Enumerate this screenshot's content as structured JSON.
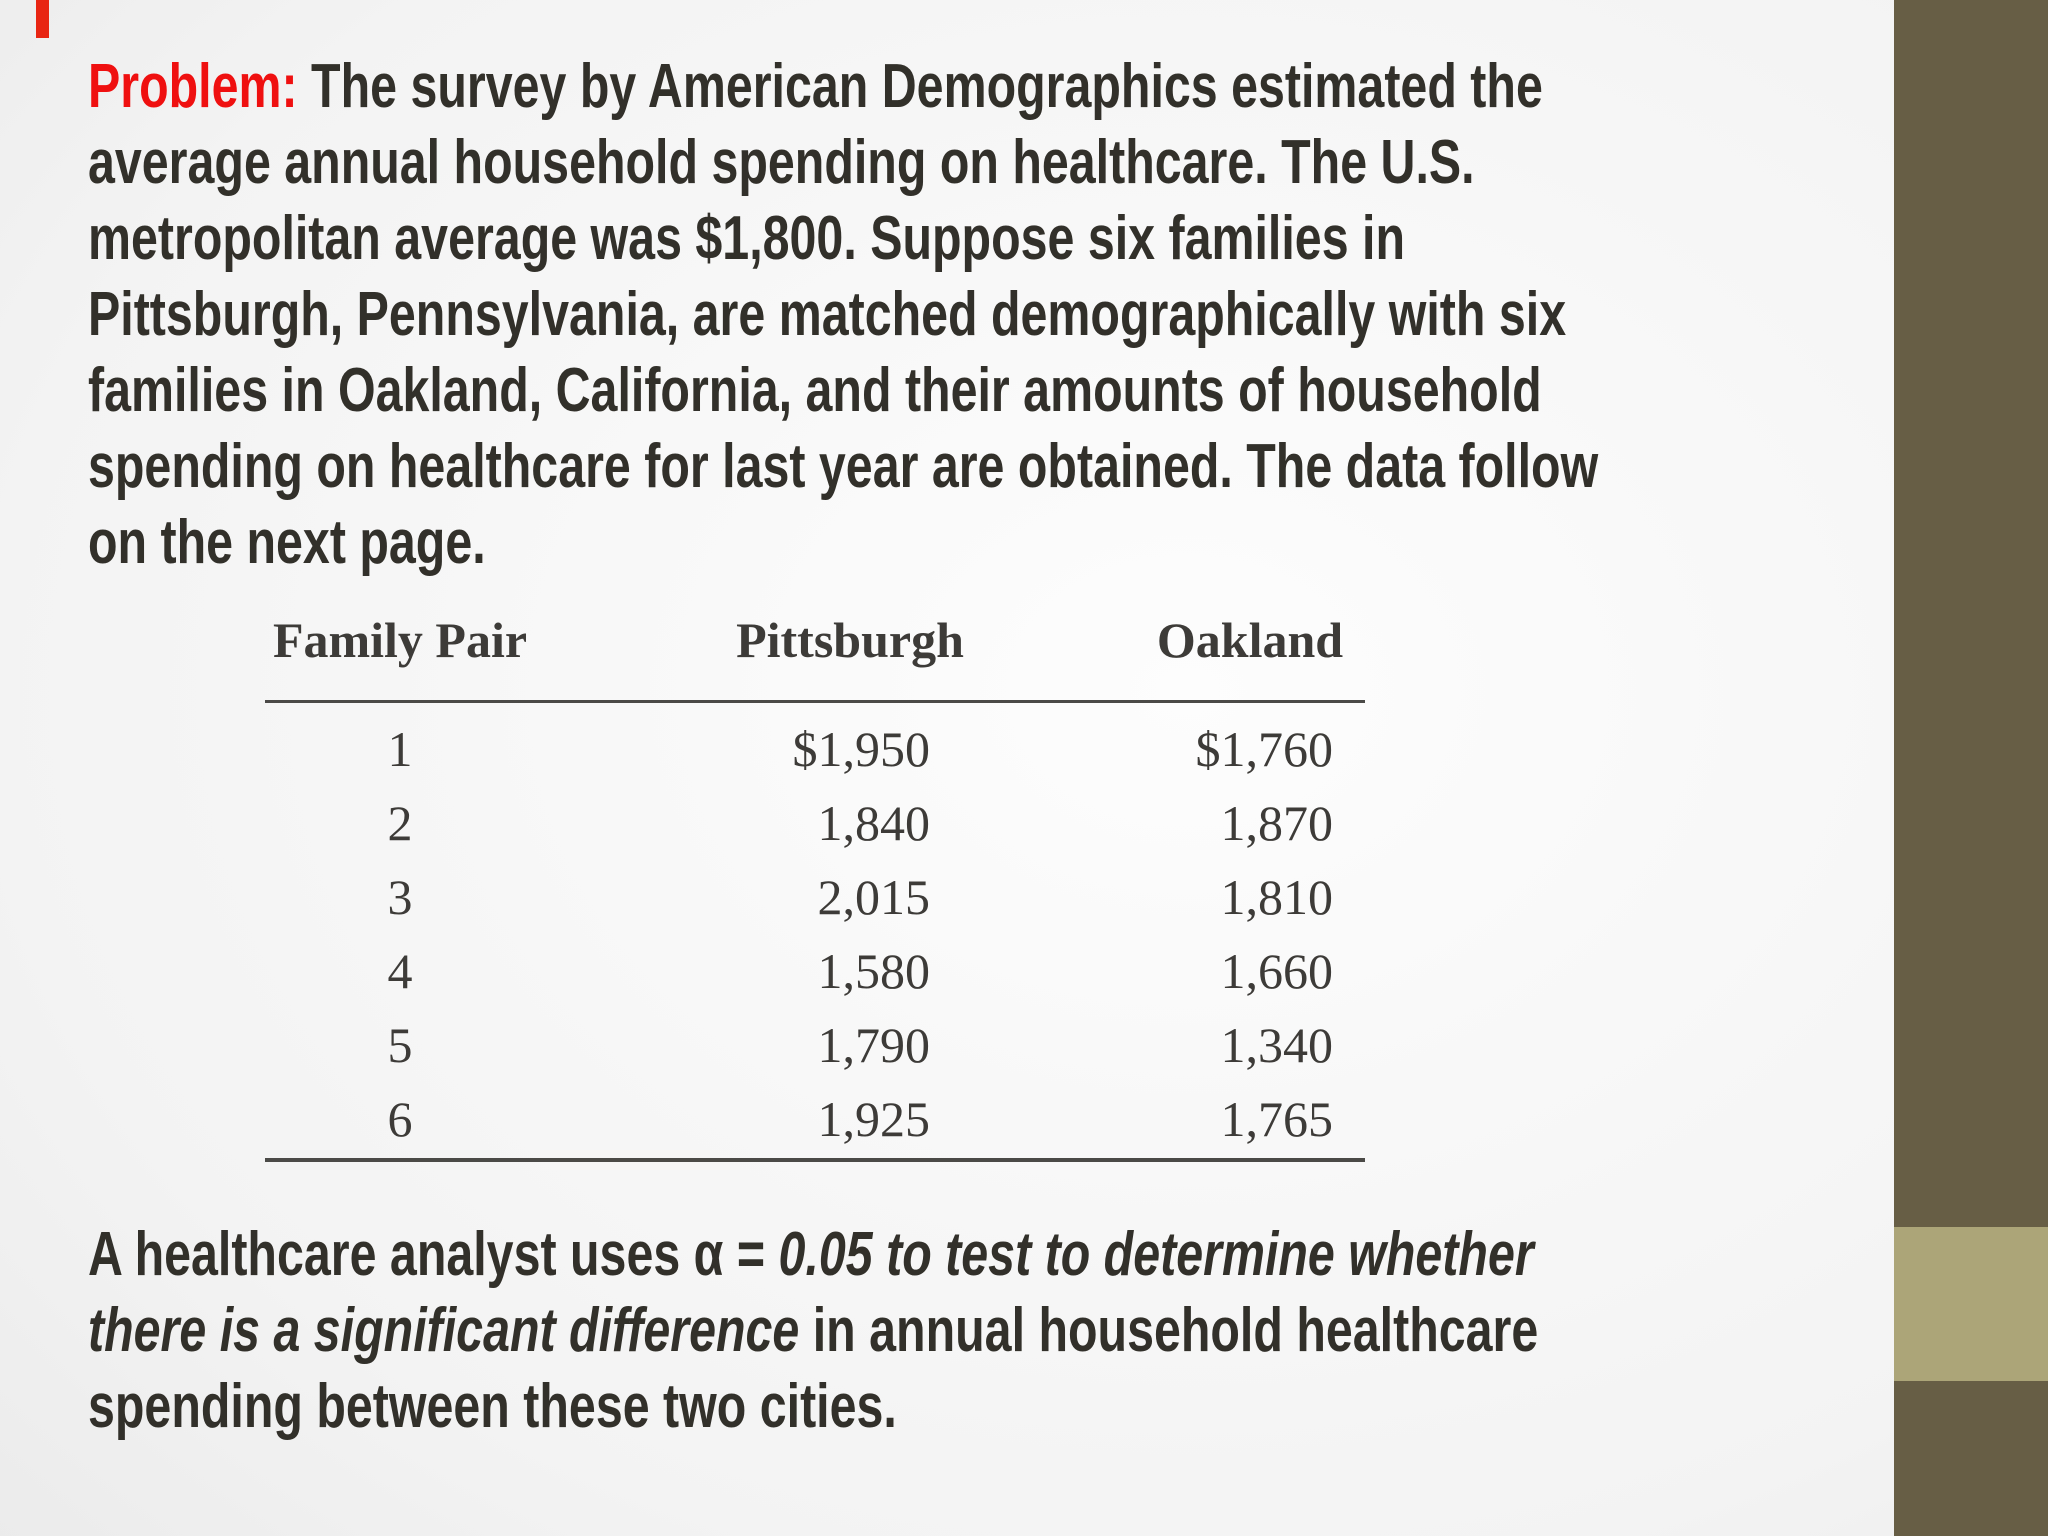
{
  "slide": {
    "colors": {
      "accent_red": "#ef1010",
      "red_mark": "#e82512",
      "text_dark": "#32302a",
      "table_text": "#3d3b38",
      "stripe_dark": "#675e45",
      "stripe_light": "#aca578",
      "background_light": "#fdfdfd",
      "background_edge": "#d9d9d9"
    },
    "problem_paragraph_lines": [
      [
        {
          "t": "Problem:",
          "s": "red"
        },
        {
          "t": "  The survey by American Demographics estimated the",
          "s": "b"
        }
      ],
      [
        {
          "t": "average annual household spending on healthcare. The U.S.",
          "s": "b"
        }
      ],
      [
        {
          "t": "metropolitan average was $1,800. Suppose six families in",
          "s": "b"
        }
      ],
      [
        {
          "t": "Pittsburgh, Pennsylvania, are matched demographically with six",
          "s": "b"
        }
      ],
      [
        {
          "t": "families in Oakland, California, and their amounts of household",
          "s": "b"
        }
      ],
      [
        {
          "t": "spending on healthcare for last year are obtained. The data follow",
          "s": "b"
        }
      ],
      [
        {
          "t": "on the next page.",
          "s": "b"
        }
      ]
    ],
    "table": {
      "columns": [
        "Family Pair",
        "Pittsburgh",
        "Oakland"
      ],
      "rows": [
        [
          "1",
          "$1,950",
          "$1,760"
        ],
        [
          "2",
          "1,840",
          "1,870"
        ],
        [
          "3",
          "2,015",
          "1,810"
        ],
        [
          "4",
          "1,580",
          "1,660"
        ],
        [
          "5",
          "1,790",
          "1,340"
        ],
        [
          "6",
          "1,925",
          "1,765"
        ]
      ]
    },
    "analysis_paragraph_lines": [
      [
        {
          "t": "A healthcare analyst uses α = ",
          "s": "b"
        },
        {
          "t": "0.05 to test to determine whether",
          "s": "bi"
        }
      ],
      [
        {
          "t": "there is a significant difference",
          "s": "bi"
        },
        {
          "t": " in annual household healthcare",
          "s": "b"
        }
      ],
      [
        {
          "t": "spending between these two cities.",
          "s": "b"
        }
      ]
    ]
  }
}
